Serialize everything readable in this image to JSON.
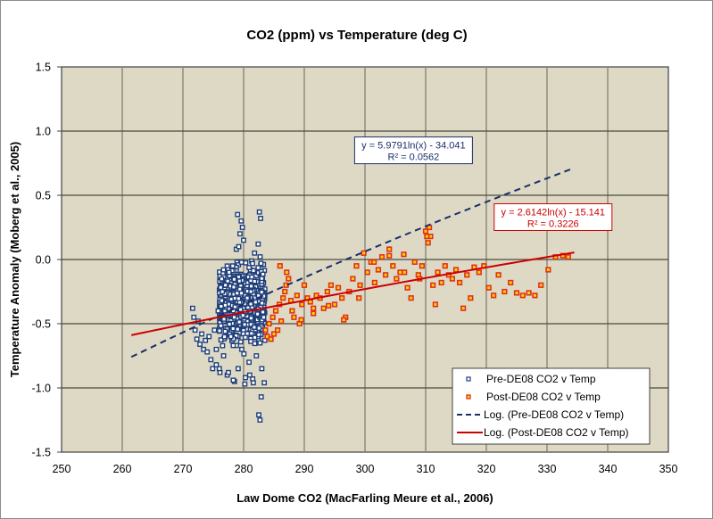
{
  "chart_data": {
    "type": "scatter",
    "title": "CO2 (ppm) vs Temperature (deg C)",
    "xlabel": "Law Dome CO2 (MacFarling Meure et al., 2006)",
    "ylabel": "Temperature Anomaly (Moberg et al., 2005)",
    "xlim": [
      250,
      350
    ],
    "ylim": [
      -1.5,
      1.5
    ],
    "xticks": [
      250,
      260,
      270,
      280,
      290,
      300,
      310,
      320,
      330,
      340,
      350
    ],
    "yticks": [
      -1.5,
      -1.0,
      -0.5,
      0.0,
      0.5,
      1.0,
      1.5
    ],
    "xtick_labels": [
      "250",
      "260",
      "270",
      "280",
      "290",
      "300",
      "310",
      "320",
      "330",
      "340",
      "350"
    ],
    "ytick_labels": [
      "-1.5",
      "-1.0",
      "-0.5",
      "0.0",
      "0.5",
      "1.0",
      "1.5"
    ],
    "grid": true,
    "legend_position": "bottom-right",
    "colors": {
      "plot_bg": "#ded9c4",
      "pre_marker": "#1f3f7a",
      "post_marker_edge": "#e0301e",
      "post_marker_fill": "#ffd700",
      "pre_trend": "#1a2f6b",
      "post_trend": "#cc0000"
    },
    "series": [
      {
        "name": "Pre-DE08 CO2 v Temp",
        "kind": "scatter",
        "cluster_note": "dense cluster (~1000 points) at CO2 271.5-283.5 ppm, temp -1.25 to 0.37",
        "x": [
          271.6,
          271.8,
          272.0,
          272.3,
          272.5,
          272.8,
          273.1,
          273.4,
          273.7,
          274.0,
          274.3,
          274.6,
          274.9,
          275.2,
          275.5,
          275.8,
          276.1,
          276.4,
          276.7,
          277.0,
          277.3,
          277.6,
          277.9,
          278.2,
          278.5,
          278.8,
          279.1,
          279.4,
          279.7,
          280.0,
          280.3,
          280.6,
          280.9,
          281.2,
          281.5,
          281.8,
          282.1,
          282.4,
          282.7,
          283.0,
          283.3,
          279.0,
          279.6,
          280.2,
          282.6,
          282.8,
          281.0,
          279.8,
          278.3,
          277.5,
          276.0,
          275.5,
          281.6,
          282.9,
          283.4,
          282.5,
          282.7,
          279.2
        ],
        "y": [
          -0.38,
          -0.45,
          -0.55,
          -0.62,
          -0.48,
          -0.66,
          -0.58,
          -0.7,
          -0.63,
          -0.72,
          -0.6,
          -0.78,
          -0.85,
          -0.55,
          -0.82,
          -0.4,
          -0.88,
          -0.32,
          -0.75,
          -0.2,
          -0.9,
          -0.1,
          -0.6,
          -0.05,
          -0.95,
          0.08,
          -0.85,
          0.2,
          -0.7,
          0.15,
          -0.92,
          -0.3,
          -0.8,
          -0.25,
          -0.93,
          0.05,
          -0.75,
          0.12,
          -0.65,
          -0.85,
          -0.45,
          0.35,
          0.3,
          -0.97,
          0.37,
          0.32,
          -0.9,
          0.25,
          -0.94,
          -0.88,
          -0.85,
          -0.7,
          -0.96,
          -1.07,
          -0.96,
          -1.21,
          -1.25,
          0.1
        ]
      },
      {
        "name": "Post-DE08 CO2 v Temp",
        "kind": "scatter",
        "x": [
          283.6,
          283.9,
          284.2,
          284.5,
          284.8,
          285.0,
          285.3,
          285.6,
          285.9,
          286.2,
          286.5,
          286.8,
          287.1,
          287.4,
          287.8,
          288.3,
          288.8,
          289.2,
          289.6,
          290.0,
          290.5,
          291.0,
          291.5,
          292.0,
          292.6,
          293.2,
          293.8,
          294.4,
          295.0,
          295.6,
          296.2,
          296.8,
          297.4,
          298.0,
          298.6,
          299.2,
          299.8,
          300.4,
          301.0,
          301.6,
          302.2,
          302.8,
          303.4,
          304.0,
          304.6,
          305.2,
          305.8,
          306.4,
          307.0,
          307.6,
          308.2,
          308.8,
          309.4,
          310.0,
          310.4,
          310.8,
          311.2,
          311.6,
          312.0,
          312.6,
          313.2,
          313.8,
          314.4,
          315.0,
          315.6,
          316.2,
          316.8,
          317.4,
          318.0,
          318.8,
          319.6,
          320.4,
          321.2,
          322.0,
          323.0,
          324.0,
          325.0,
          326.0,
          327.0,
          328.0,
          329.0,
          330.2,
          331.4,
          332.6,
          333.5,
          286.0,
          287.0,
          288.0,
          289.5,
          291.5,
          294.0,
          296.5,
          299.0,
          301.5,
          304.0,
          306.5,
          309.0,
          310.2,
          310.6
        ],
        "y": [
          -0.55,
          -0.6,
          -0.5,
          -0.62,
          -0.45,
          -0.58,
          -0.4,
          -0.55,
          -0.35,
          -0.48,
          -0.3,
          -0.25,
          -0.1,
          -0.15,
          -0.32,
          -0.45,
          -0.28,
          -0.5,
          -0.35,
          -0.2,
          -0.3,
          -0.33,
          -0.42,
          -0.28,
          -0.3,
          -0.38,
          -0.25,
          -0.2,
          -0.35,
          -0.22,
          -0.3,
          -0.45,
          -0.25,
          -0.15,
          -0.05,
          -0.2,
          0.05,
          -0.1,
          -0.02,
          -0.18,
          -0.08,
          0.02,
          -0.12,
          0.08,
          -0.05,
          -0.15,
          -0.1,
          0.04,
          -0.22,
          -0.3,
          -0.02,
          -0.12,
          -0.05,
          0.22,
          0.13,
          0.18,
          -0.2,
          -0.35,
          -0.1,
          -0.18,
          -0.05,
          -0.12,
          -0.15,
          -0.08,
          -0.18,
          -0.38,
          -0.12,
          -0.3,
          -0.06,
          -0.1,
          -0.05,
          -0.22,
          -0.28,
          -0.12,
          -0.25,
          -0.18,
          -0.26,
          -0.28,
          -0.26,
          -0.28,
          -0.2,
          -0.08,
          0.02,
          0.03,
          0.02,
          -0.05,
          -0.2,
          -0.4,
          -0.47,
          -0.38,
          -0.36,
          -0.47,
          -0.3,
          -0.02,
          0.03,
          -0.1,
          -0.15,
          0.18,
          0.25
        ]
      },
      {
        "name": "Log. (Pre-DE08 CO2 v Temp)",
        "kind": "trendline",
        "style": "dashed",
        "equation": "y = 5.9791ln(x) - 34.041",
        "r2": "R² = 0.0562",
        "a": 5.9791,
        "b": -34.041,
        "x_range": [
          261.5,
          335.0
        ]
      },
      {
        "name": "Log. (Post-DE08 CO2 v Temp)",
        "kind": "trendline",
        "style": "solid",
        "equation": "y = 2.6142ln(x) - 15.141",
        "r2": "R² = 0.3226",
        "a": 2.6142,
        "b": -15.141,
        "x_range": [
          261.5,
          335.0
        ]
      }
    ],
    "annotations": [
      {
        "text": "y = 5.9791ln(x) - 34.041",
        "line2": "R² = 0.0562",
        "color": "#1a2f6b",
        "anchor_x": 308,
        "anchor_y": 0.85
      },
      {
        "text": "y = 2.6142ln(x) - 15.141",
        "line2": "R² = 0.3226",
        "color": "#cc0000",
        "anchor_x": 331,
        "anchor_y": 0.33
      }
    ],
    "legend": [
      "Pre-DE08 CO2 v Temp",
      "Post-DE08 CO2 v Temp",
      "Log. (Pre-DE08 CO2 v Temp)",
      "Log. (Post-DE08 CO2 v Temp)"
    ]
  }
}
